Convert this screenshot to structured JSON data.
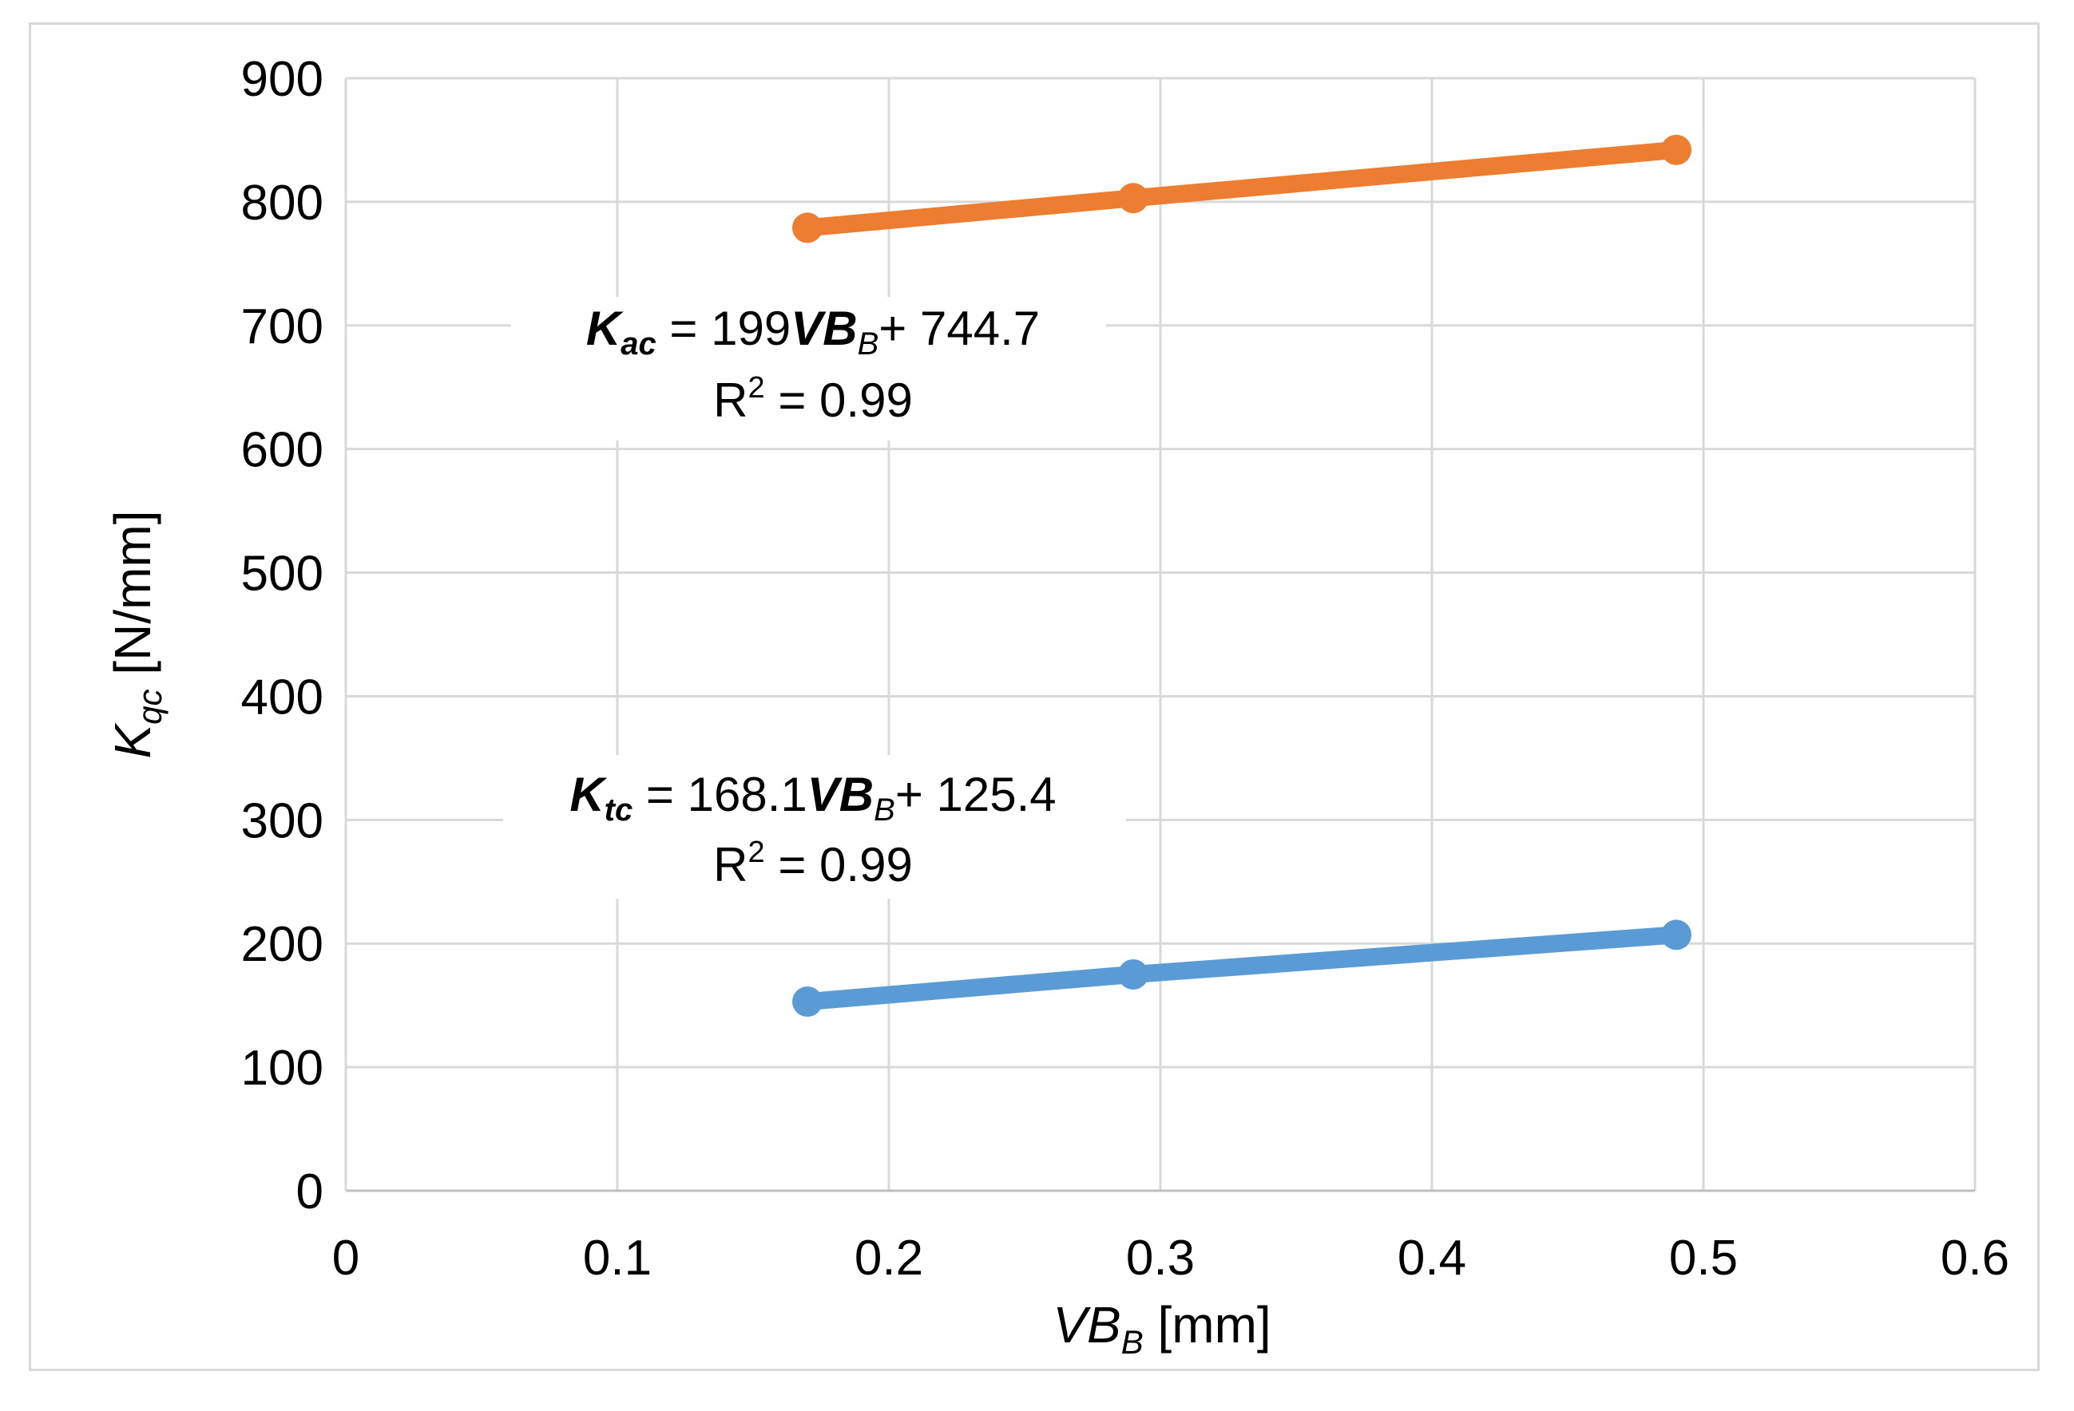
{
  "chart_data": {
    "type": "line",
    "title": "",
    "xlabel": {
      "main": "VB",
      "sub": "B",
      "unit": " [mm]"
    },
    "ylabel": {
      "main": "K",
      "sub": "qc",
      "unit": " [N/mm]"
    },
    "xlim": [
      0,
      0.6
    ],
    "ylim": [
      0,
      900
    ],
    "xticks": [
      0,
      0.1,
      0.2,
      0.3,
      0.4,
      0.5,
      0.6
    ],
    "xtick_labels": [
      "0",
      "0.1",
      "0.2",
      "0.3",
      "0.4",
      "0.5",
      "0.6"
    ],
    "yticks": [
      0,
      100,
      200,
      300,
      400,
      500,
      600,
      700,
      800,
      900
    ],
    "ytick_labels": [
      "0",
      "100",
      "200",
      "300",
      "400",
      "500",
      "600",
      "700",
      "800",
      "900"
    ],
    "grid": true,
    "series": [
      {
        "name": "Kac",
        "color": "#ed7d31",
        "x": [
          0.17,
          0.29,
          0.49
        ],
        "y": [
          779,
          803,
          842
        ]
      },
      {
        "name": "Ktc",
        "color": "#5b9bd5",
        "x": [
          0.17,
          0.29,
          0.49
        ],
        "y": [
          153,
          175,
          207
        ]
      }
    ],
    "annotations": [
      {
        "series": "Kac",
        "var": "K",
        "var_sub": "ac",
        "eq_mid": " = 199",
        "coef_var": "VB",
        "coef_sub": "B",
        "eq_end": "+ 744.7",
        "r2_label": "R",
        "r2_sup": "2",
        "r2_value": " = 0.99"
      },
      {
        "series": "Ktc",
        "var": "K",
        "var_sub": "tc",
        "eq_mid": "  = 168.1",
        "coef_var": "VB",
        "coef_sub": "B",
        "eq_end": "+ 125.4",
        "r2_label": "R",
        "r2_sup": "2",
        "r2_value": " = 0.99"
      }
    ]
  }
}
